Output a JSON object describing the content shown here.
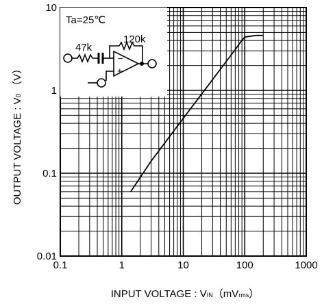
{
  "chart_data": {
    "type": "line",
    "x_scale": "log",
    "y_scale": "log",
    "xlim": [
      0.1,
      1000
    ],
    "ylim": [
      0.01,
      10
    ],
    "grid": true,
    "x_ticks": [
      "0.1",
      "1",
      "10",
      "100",
      "1000"
    ],
    "y_ticks": [
      "0.01",
      "0.1",
      "1",
      "10"
    ],
    "xlabel": {
      "main": "INPUT  VOLTAGE : V",
      "sub": "IN",
      "unit_open": "（mV",
      "unit_sub": "rms",
      "unit_close": "）"
    },
    "ylabel": {
      "main": "OUTPUT  VOLTAGE : V",
      "sub": "0",
      "unit": "（V）"
    },
    "series": [
      {
        "x": [
          1.4,
          3,
          10,
          30,
          70,
          85,
          100,
          150,
          200
        ],
        "y": [
          0.06,
          0.14,
          0.46,
          1.35,
          3.1,
          3.8,
          4.4,
          4.6,
          4.6
        ]
      }
    ],
    "inset": {
      "condition": "Ta=25℃",
      "r_in": "47k",
      "r_fb": "120k",
      "minus": "−",
      "plus": "+"
    }
  }
}
